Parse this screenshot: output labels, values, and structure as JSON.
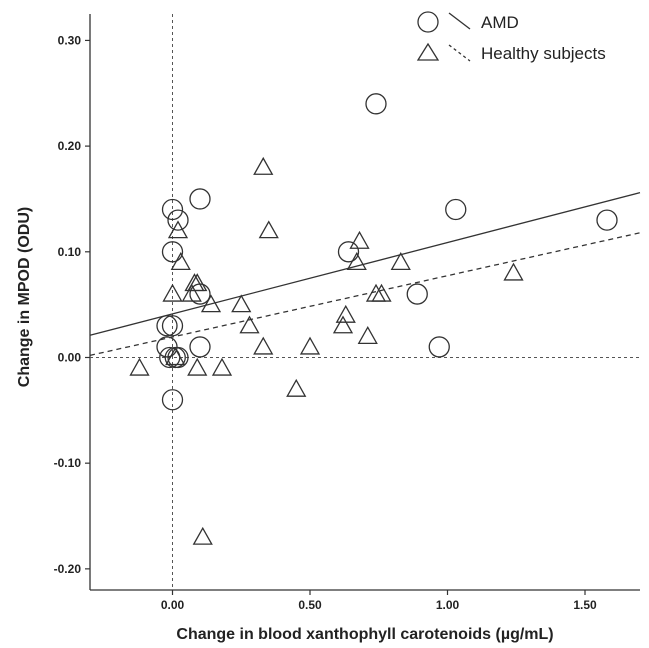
{
  "chart_data": {
    "type": "scatter",
    "xlabel": "Change in blood xanthophyll carotenoids (µg/mL)",
    "ylabel": "Change in MPOD (ODU)",
    "xlim": [
      -0.3,
      1.7
    ],
    "ylim": [
      -0.22,
      0.325
    ],
    "xticks": [
      0.0,
      0.5,
      1.0,
      1.5
    ],
    "xtick_labels": [
      "0.00",
      "0.50",
      "1.00",
      "1.50"
    ],
    "yticks": [
      -0.2,
      -0.1,
      0.0,
      0.1,
      0.2,
      0.3
    ],
    "ytick_labels": [
      "-0.20",
      "-0.10",
      "0.00",
      "0.10",
      "0.20",
      "0.30"
    ],
    "reference_lines": {
      "x": 0.0,
      "y": 0.0,
      "style": "dotted"
    },
    "grid": false,
    "legend_position": "top-right",
    "series": [
      {
        "name": "AMD",
        "marker": "circle",
        "line_style": "solid",
        "fit_line": [
          [
            -0.3,
            0.021
          ],
          [
            1.7,
            0.156
          ]
        ],
        "points": [
          [
            -0.02,
            0.03
          ],
          [
            -0.02,
            0.01
          ],
          [
            -0.01,
            0.0
          ],
          [
            0.0,
            0.14
          ],
          [
            0.02,
            0.13
          ],
          [
            0.0,
            0.1
          ],
          [
            0.0,
            0.03
          ],
          [
            0.01,
            0.0
          ],
          [
            0.02,
            0.0
          ],
          [
            0.0,
            -0.04
          ],
          [
            0.1,
            0.15
          ],
          [
            0.1,
            0.06
          ],
          [
            0.1,
            0.01
          ],
          [
            0.74,
            0.24
          ],
          [
            1.03,
            0.14
          ],
          [
            0.64,
            0.1
          ],
          [
            0.89,
            0.06
          ],
          [
            0.97,
            0.01
          ],
          [
            1.58,
            0.13
          ]
        ]
      },
      {
        "name": "Healthy subjects",
        "marker": "triangle",
        "line_style": "dashed",
        "fit_line": [
          [
            -0.3,
            0.002
          ],
          [
            1.7,
            0.118
          ]
        ],
        "points": [
          [
            -0.12,
            -0.01
          ],
          [
            0.0,
            0.06
          ],
          [
            0.01,
            0.0
          ],
          [
            0.02,
            0.12
          ],
          [
            0.03,
            0.09
          ],
          [
            0.07,
            0.06
          ],
          [
            0.08,
            0.07
          ],
          [
            0.09,
            0.07
          ],
          [
            0.09,
            -0.01
          ],
          [
            0.14,
            0.05
          ],
          [
            0.18,
            -0.01
          ],
          [
            0.11,
            -0.17
          ],
          [
            0.25,
            0.05
          ],
          [
            0.28,
            0.03
          ],
          [
            0.33,
            0.18
          ],
          [
            0.33,
            0.01
          ],
          [
            0.35,
            0.12
          ],
          [
            0.45,
            -0.03
          ],
          [
            0.5,
            0.01
          ],
          [
            0.62,
            0.03
          ],
          [
            0.63,
            0.04
          ],
          [
            0.67,
            0.09
          ],
          [
            0.68,
            0.11
          ],
          [
            0.71,
            0.02
          ],
          [
            0.74,
            0.06
          ],
          [
            0.76,
            0.06
          ],
          [
            0.83,
            0.09
          ],
          [
            1.24,
            0.08
          ]
        ]
      }
    ]
  }
}
